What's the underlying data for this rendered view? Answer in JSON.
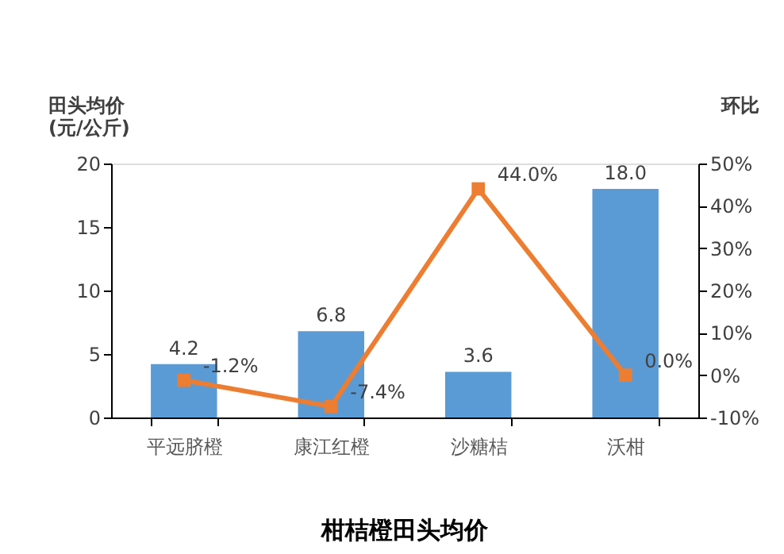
{
  "chart_data": {
    "type": "bar",
    "title": "柑桔橙田头均价",
    "ylabel": "田头均价\n(元/公斤)",
    "y2label": "环比",
    "categories": [
      "平远脐橙",
      "康江红橙",
      "沙糖桔",
      "沃柑"
    ],
    "series": [
      {
        "color": "#5b9bd5",
        "values": [
          4.2,
          6.8,
          3.6,
          18.0
        ],
        "value_labels": [
          "4.2",
          "6.8",
          "3.6",
          "18.0"
        ]
      },
      {
        "type": "line",
        "axis": "y2",
        "color": "#ed7d31",
        "marker": "square",
        "values": [
          -1.2,
          -7.4,
          44.0,
          0.0
        ],
        "value_labels": [
          "-1.2%",
          "-7.4%",
          "44.0%",
          "0.0%"
        ]
      }
    ],
    "ylim": [
      0,
      20
    ],
    "yticks": [
      0,
      5,
      10,
      15,
      20
    ],
    "y2lim": [
      -10,
      50
    ],
    "y2ticks": [
      {
        "value": -10,
        "label": "-10%"
      },
      {
        "value": 0,
        "label": "0%"
      },
      {
        "value": 10,
        "label": "10%"
      },
      {
        "value": 20,
        "label": "20%"
      },
      {
        "value": 30,
        "label": "30%"
      },
      {
        "value": 40,
        "label": "40%"
      },
      {
        "value": 50,
        "label": "50%"
      }
    ],
    "grid": false
  }
}
